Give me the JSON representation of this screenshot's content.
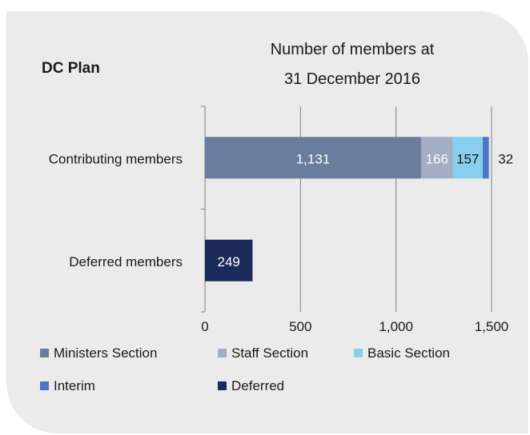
{
  "chart_data": {
    "type": "bar",
    "orientation": "horizontal",
    "stacked": true,
    "label": "DC Plan",
    "title": "Number of members at 31 December 2016",
    "title_lines": [
      "Number of members at",
      "31 December 2016"
    ],
    "categories": [
      "Contributing members",
      "Deferred members"
    ],
    "series": [
      {
        "name": "Ministers Section",
        "values": [
          1131,
          0
        ],
        "labels": [
          "1,131",
          ""
        ],
        "color": "#6a7d9c",
        "label_color": "#ffffff"
      },
      {
        "name": "Staff Section",
        "values": [
          166,
          0
        ],
        "labels": [
          "166",
          ""
        ],
        "color": "#a3adc4",
        "label_color": "#ffffff"
      },
      {
        "name": "Basic Section",
        "values": [
          157,
          0
        ],
        "labels": [
          "157",
          ""
        ],
        "color": "#87cfee",
        "label_color": "#1a1a1a"
      },
      {
        "name": "Interim",
        "values": [
          32,
          0
        ],
        "labels": [
          "32",
          ""
        ],
        "color": "#4a76c4",
        "label_color": "#1a1a1a",
        "label_outside": true
      },
      {
        "name": "Deferred",
        "values": [
          0,
          249
        ],
        "labels": [
          "",
          "249"
        ],
        "color": "#1a2a5a",
        "label_color": "#ffffff"
      }
    ],
    "xlim": [
      0,
      1500
    ],
    "xticks": [
      0,
      500,
      1000,
      1500
    ],
    "xtick_labels": [
      "0",
      "500",
      "1,000",
      "1,500"
    ],
    "grid": true,
    "legend_position": "bottom"
  }
}
